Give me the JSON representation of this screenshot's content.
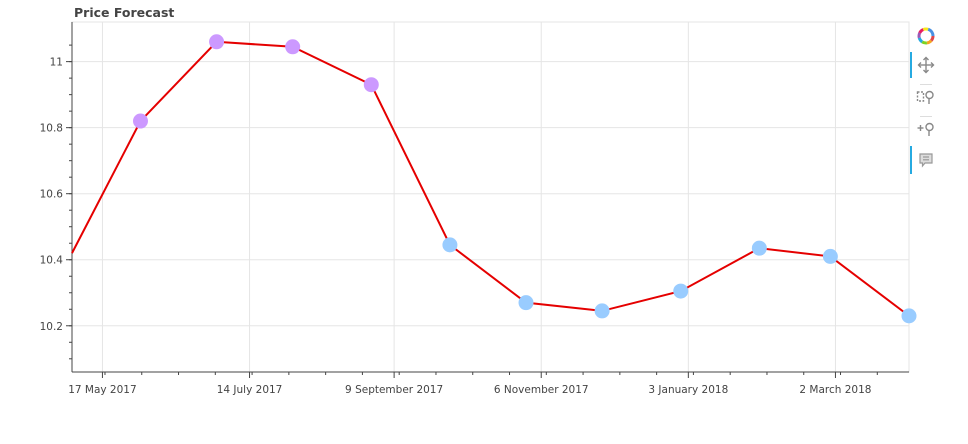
{
  "chart_data": {
    "type": "line",
    "title": "Price Forecast",
    "x_label_format": "D Month YYYY",
    "x_ticks": [
      "17 May 2017",
      "14 July 2017",
      "9 September 2017",
      "6 November 2017",
      "3 January 2018",
      "2 March 2018"
    ],
    "y_ticks": [
      10.2,
      10.4,
      10.6,
      10.8,
      11
    ],
    "xlim": [
      "2017-05-05",
      "2018-03-31"
    ],
    "ylim": [
      10.06,
      11.12
    ],
    "grid": true,
    "line_color": "#e50000",
    "series": [
      {
        "marker_color": "#cc99ff",
        "x": [
          "2017-06-01",
          "2017-07-01",
          "2017-07-31",
          "2017-08-31"
        ],
        "y": [
          10.82,
          11.06,
          11.045,
          10.93
        ]
      },
      {
        "marker_color": "#99ccff",
        "x": [
          "2017-10-01",
          "2017-10-31",
          "2017-11-30",
          "2017-12-31",
          "2018-01-31",
          "2018-02-28",
          "2018-03-31"
        ],
        "y": [
          10.445,
          10.27,
          10.245,
          10.305,
          10.435,
          10.41,
          10.23
        ]
      }
    ],
    "line": {
      "x": [
        "2017-05-05",
        "2017-06-01",
        "2017-07-01",
        "2017-07-31",
        "2017-08-31",
        "2017-10-01",
        "2017-10-31",
        "2017-11-30",
        "2017-12-31",
        "2018-01-31",
        "2018-02-28",
        "2018-03-31"
      ],
      "y": [
        10.42,
        10.82,
        11.06,
        11.045,
        10.93,
        10.445,
        10.27,
        10.245,
        10.305,
        10.435,
        10.41,
        10.23
      ]
    }
  },
  "toolbar": {
    "tools": [
      "bokeh-logo-icon",
      "pan-icon",
      "box-zoom-icon",
      "wheel-zoom-icon",
      "hover-icon"
    ],
    "active_color": "#26aae1"
  }
}
